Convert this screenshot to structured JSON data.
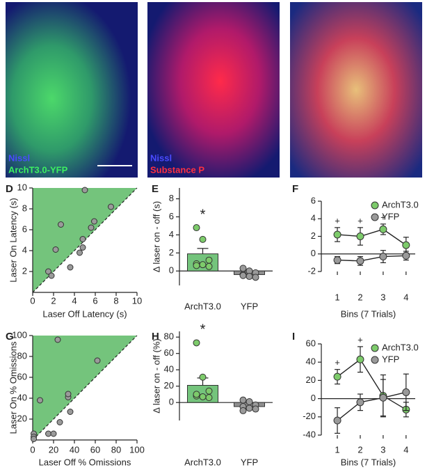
{
  "images": [
    {
      "labels": [
        "Nissl",
        "ArchT3.0-YFP"
      ]
    },
    {
      "labels": [
        "Nissl",
        "Substance P"
      ]
    }
  ],
  "chart_data": [
    {
      "type": "scatter",
      "panel_label": "D",
      "x_label": "Laser Off  Latency (s)",
      "y_label": "Laser On Latency (s)",
      "x": [
        1.5,
        1.8,
        2.2,
        2.7,
        3.6,
        4.5,
        4.8,
        4.8,
        5.0,
        5.6,
        5.9,
        7.5
      ],
      "values": [
        2.0,
        1.6,
        4.1,
        6.5,
        2.4,
        3.8,
        4.3,
        5.1,
        9.8,
        6.2,
        6.8,
        8.2
      ],
      "color": "#9a9a9a",
      "shade_color": "#74c47c",
      "xlim": [
        0,
        10
      ],
      "ylim": [
        0,
        10
      ],
      "xticks": [
        0,
        2,
        4,
        6,
        8,
        10
      ],
      "yticks": [
        2,
        4,
        6,
        8,
        10
      ]
    },
    {
      "type": "bar",
      "panel_label": "E",
      "y_label": "Δ laser on - off (s)",
      "categories": [
        "ArchT3.0",
        "YFP"
      ],
      "values": [
        1.9,
        -0.4
      ],
      "errors": [
        0.6,
        0.2
      ],
      "points": [
        [
          4.8,
          3.5,
          1.2,
          0.8,
          0.7,
          0.5,
          0.6
        ],
        [
          0.3,
          0.0,
          -0.2,
          -0.4,
          -0.6,
          -0.7,
          -0.5
        ]
      ],
      "colors": [
        "#74c47c",
        "#8f8f8f"
      ],
      "point_colors": [
        "#7dcb6b",
        "#9a9a9a"
      ],
      "annotations": [
        {
          "category": "ArchT3.0",
          "text": "*"
        }
      ],
      "ylim": [
        -1.6,
        9.2
      ],
      "yticks": [
        0,
        2,
        4,
        6,
        8
      ]
    },
    {
      "type": "line",
      "panel_label": "F",
      "x_label": "Bins (7 Trials)",
      "x": [
        1,
        2,
        3,
        4
      ],
      "series": [
        {
          "name": "ArchT3.0",
          "color": "#7dcb6b",
          "values": [
            2.2,
            2.0,
            2.8,
            1.0
          ],
          "errors": [
            0.8,
            1.0,
            0.6,
            0.9
          ]
        },
        {
          "name": "YFP",
          "color": "#9a9a9a",
          "values": [
            -0.7,
            -0.8,
            -0.3,
            -0.2
          ],
          "errors": [
            0.4,
            0.5,
            0.7,
            0.5
          ]
        }
      ],
      "annotations": [
        {
          "x": 1,
          "text": "+"
        },
        {
          "x": 2,
          "text": "+"
        },
        {
          "x": 3,
          "text": "+"
        }
      ],
      "legend": "upper right",
      "xlim": [
        0.3,
        4.4
      ],
      "ylim": [
        -2,
        6
      ],
      "xticks": [
        1,
        2,
        3,
        4
      ],
      "yticks": [
        -2,
        0,
        2,
        4,
        6
      ]
    },
    {
      "type": "scatter",
      "panel_label": "G",
      "x_label": "Laser Off % Omissions",
      "y_label": "Laser On % Omissions",
      "x": [
        1,
        1,
        1,
        7,
        15,
        20,
        24,
        26,
        34,
        34,
        36,
        62
      ],
      "values": [
        6,
        3,
        1,
        38,
        6,
        6,
        96,
        17,
        41,
        44,
        27,
        76
      ],
      "color": "#9a9a9a",
      "shade_color": "#74c47c",
      "xlim": [
        0,
        100
      ],
      "ylim": [
        0,
        100
      ],
      "xticks": [
        0,
        20,
        40,
        60,
        80,
        100
      ],
      "yticks": [
        20,
        40,
        60,
        80,
        100
      ]
    },
    {
      "type": "bar",
      "panel_label": "H",
      "y_label": "Δ laser on - off (%)",
      "categories": [
        "ArchT3.0",
        "YFP"
      ],
      "values": [
        21,
        -5
      ],
      "errors": [
        9,
        3
      ],
      "points": [
        [
          73,
          31,
          14,
          8,
          7,
          6,
          10
        ],
        [
          3,
          1,
          -3,
          -5,
          -7,
          -8,
          -10
        ]
      ],
      "colors": [
        "#74c47c",
        "#8f8f8f"
      ],
      "point_colors": [
        "#7dcb6b",
        "#9a9a9a"
      ],
      "annotations": [
        {
          "category": "ArchT3.0",
          "text": "*"
        }
      ],
      "ylim": [
        -22,
        87
      ],
      "yticks": [
        0,
        20,
        40,
        60,
        80
      ]
    },
    {
      "type": "line",
      "panel_label": "I",
      "x_label": "Bins (7 Trials)",
      "x": [
        1,
        2,
        3,
        4
      ],
      "series": [
        {
          "name": "ArchT3.0",
          "color": "#7dcb6b",
          "values": [
            24,
            43,
            3,
            -12
          ],
          "errors": [
            8,
            14,
            23,
            8
          ]
        },
        {
          "name": "YFP",
          "color": "#9a9a9a",
          "values": [
            -24,
            -4,
            1,
            7
          ],
          "errors": [
            14,
            9,
            20,
            20
          ]
        }
      ],
      "annotations": [
        {
          "x": 1,
          "text": "+"
        },
        {
          "x": 2,
          "text": "+"
        }
      ],
      "legend": "upper right",
      "xlim": [
        0.3,
        4.4
      ],
      "ylim": [
        -40,
        60
      ],
      "xticks": [
        1,
        2,
        3,
        4
      ],
      "yticks": [
        -40,
        -20,
        0,
        20,
        40,
        60
      ]
    }
  ]
}
